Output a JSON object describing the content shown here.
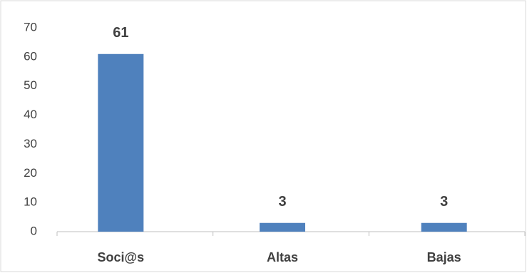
{
  "chart_data": {
    "type": "bar",
    "categories": [
      "Soci@s",
      "Altas",
      "Bajas"
    ],
    "values": [
      61,
      3,
      3
    ],
    "color": "#4f81bd",
    "ylim": [
      0,
      70
    ],
    "yticks": [
      0,
      10,
      20,
      30,
      40,
      50,
      60,
      70
    ],
    "grid": false
  }
}
